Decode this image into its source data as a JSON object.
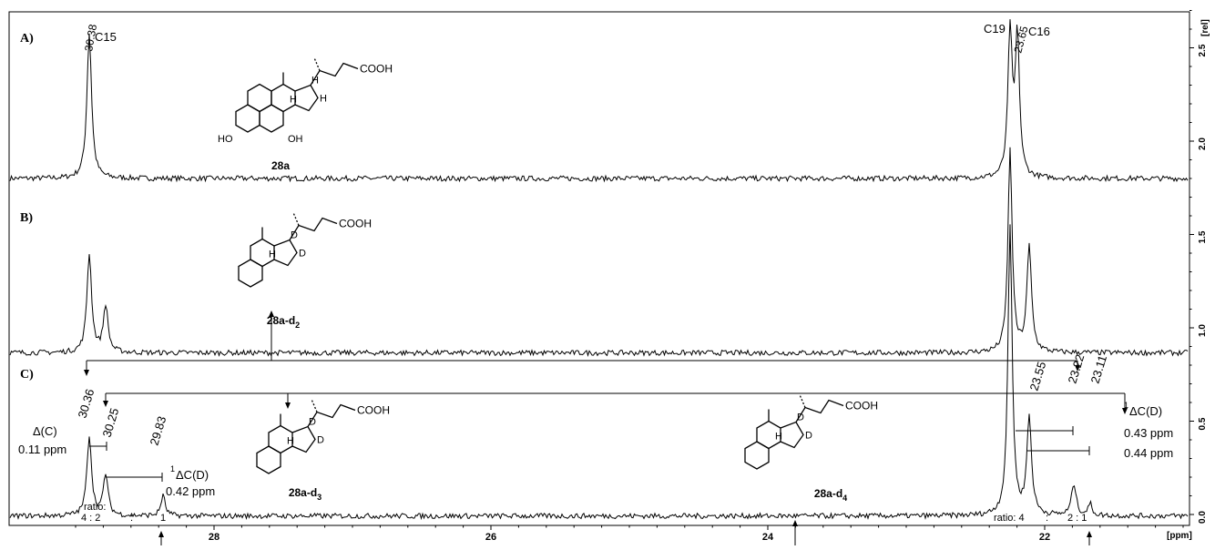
{
  "chart_data": {
    "type": "line",
    "xlabel": "[ppm]",
    "ylabel": "[rel]",
    "xlim": [
      29.0,
      20.6
    ],
    "x_axis_reversed": true,
    "ylim": [
      -0.1,
      2.9
    ],
    "x_ticks": [
      28,
      26,
      24,
      22
    ],
    "y_ticks": [
      0.0,
      0.5,
      1.0,
      1.5,
      2.0,
      2.5
    ],
    "y_tick_labels": [
      "0.0",
      "0.5",
      "1.0",
      "1.5",
      "2.0",
      "2.5"
    ],
    "grid": false,
    "panels": [
      {
        "label": "A)",
        "baseline": 1.8,
        "peaks": [
          {
            "ppm": 30.38,
            "height": 0.78,
            "width": 0.022
          },
          {
            "ppm": 23.65,
            "height": 0.78,
            "width": 0.02
          },
          {
            "ppm": 23.56,
            "height": 0.75,
            "width": 0.02
          }
        ],
        "annotations": [
          {
            "text": "30.38",
            "rotated": true,
            "at_ppm": 30.38
          },
          {
            "text": "C15",
            "at_ppm": 30.3
          },
          {
            "text": "C19",
            "at_ppm": 23.82
          },
          {
            "text": "23.65",
            "rotated": true,
            "at_ppm": 23.64
          },
          {
            "text": "C16",
            "at_ppm": 23.4
          }
        ],
        "structure_label": "28a"
      },
      {
        "label": "B)",
        "baseline": 0.87,
        "peaks": [
          {
            "ppm": 30.38,
            "height": 0.53,
            "width": 0.022
          },
          {
            "ppm": 30.25,
            "height": 0.25,
            "width": 0.022
          },
          {
            "ppm": 23.65,
            "height": 1.08,
            "width": 0.02
          },
          {
            "ppm": 23.55,
            "height": 0.56,
            "width": 0.022
          }
        ],
        "structure_label": "28a-d",
        "structure_label_sub": "2"
      },
      {
        "label": "C)",
        "baseline": 0.0,
        "peaks": [
          {
            "ppm": 30.36,
            "height": 0.43,
            "width": 0.022
          },
          {
            "ppm": 30.25,
            "height": 0.22,
            "width": 0.022
          },
          {
            "ppm": 29.83,
            "height": 0.11,
            "width": 0.02
          },
          {
            "ppm": 23.65,
            "height": 1.55,
            "width": 0.02
          },
          {
            "ppm": 23.55,
            "height": 0.52,
            "width": 0.022
          },
          {
            "ppm": 23.22,
            "height": 0.17,
            "width": 0.022
          },
          {
            "ppm": 23.11,
            "height": 0.06,
            "width": 0.02
          }
        ],
        "annotations": [
          {
            "text": "30.36",
            "rotated": true
          },
          {
            "text": "30.25",
            "rotated": true
          },
          {
            "text": "29.83",
            "rotated": true
          },
          {
            "text": "23.55",
            "rotated": true
          },
          {
            "text": "23.22",
            "rotated": true
          },
          {
            "text": "23.11",
            "rotated": true
          },
          {
            "text": "Δ(C)"
          },
          {
            "text": "0.11 ppm"
          },
          {
            "text": "¹ΔC(D)"
          },
          {
            "text": "0.42 ppm"
          },
          {
            "text": "¹ΔC(D)"
          },
          {
            "text": "0.43 ppm"
          },
          {
            "text": "0.44 ppm"
          },
          {
            "text": "ratio:"
          },
          {
            "text": "4 : 2"
          },
          {
            "text": ":"
          },
          {
            "text": "1"
          },
          {
            "text": "ratio: 4"
          },
          {
            "text": ":"
          },
          {
            "text": "2 : 1"
          }
        ],
        "structure_labels": [
          "28a-d3",
          "28a-d4"
        ]
      }
    ]
  },
  "labels": {
    "panel_a": "A)",
    "panel_b": "B)",
    "panel_c": "C)",
    "x_unit": "[ppm]",
    "y_unit": "[rel]",
    "a_30_38": "30.38",
    "a_c15": "C15",
    "a_c19": "C19",
    "a_23_65": "23.65",
    "a_c16": "C16",
    "c_30_36": "30.36",
    "c_30_25": "30.25",
    "c_29_83": "29.83",
    "c_23_55": "23.55",
    "c_23_22": "23.22",
    "c_23_11": "23.11",
    "delta_c": "Δ(C)",
    "delta_c_val": "0.11 ppm",
    "delta_cd_left": "ΔC(D)",
    "delta_cd_left_sup": "1",
    "delta_cd_left_val": "0.42 ppm",
    "delta_cd_right": "ΔC(D)",
    "delta_cd_right_sup": "1",
    "delta_cd_right_val1": "0.43 ppm",
    "delta_cd_right_val2": "0.44 ppm",
    "ratio_left_1": "ratio:",
    "ratio_left_2": "4 : 2",
    "ratio_left_colon": ":",
    "ratio_left_3": "1",
    "ratio_right_1": "ratio: 4",
    "ratio_right_colon": ":",
    "ratio_right_2": "2 : 1",
    "struct_28a": "28a",
    "struct_28a_d2": "28a-d",
    "struct_28a_d2_sub": "2",
    "struct_28a_d3": "28a-d",
    "struct_28a_d3_sub": "3",
    "struct_28a_d4": "28a-d",
    "struct_28a_d4_sub": "4",
    "cooh": "COOH",
    "ho": "HO",
    "oh": "OH",
    "h": "H",
    "d": "D"
  }
}
